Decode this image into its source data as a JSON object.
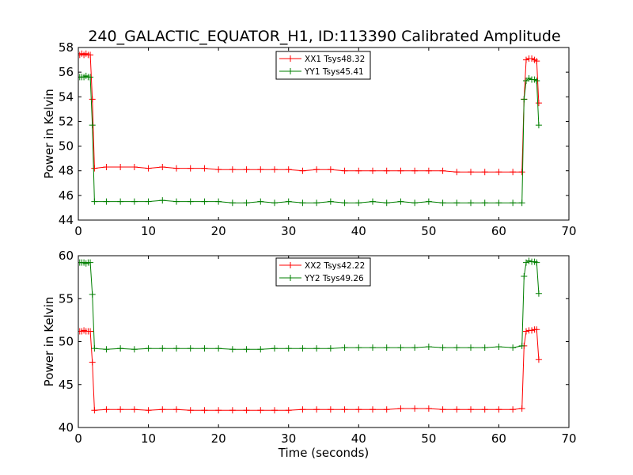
{
  "figure": {
    "title": "240_GALACTIC_EQUATOR_H1, ID:113390 Calibrated Amplitude"
  },
  "chart_data": [
    {
      "type": "line",
      "title": "240_GALACTIC_EQUATOR_H1, ID:113390 Calibrated Amplitude",
      "xlabel": "",
      "ylabel": "Power in Kelvin",
      "xlim": [
        0,
        70
      ],
      "ylim": [
        44,
        58
      ],
      "xticks": [
        0,
        10,
        20,
        30,
        40,
        50,
        60,
        70
      ],
      "yticks": [
        44,
        46,
        48,
        50,
        52,
        54,
        56,
        58
      ],
      "legend_position": "top-center",
      "grid": false,
      "marker": "+",
      "series": [
        {
          "name": "XX1 Tsys48.32",
          "color": "#ff0000",
          "points": [
            [
              0.2,
              57.4
            ],
            [
              0.5,
              57.5
            ],
            [
              0.8,
              57.4
            ],
            [
              1.1,
              57.5
            ],
            [
              1.4,
              57.4
            ],
            [
              1.7,
              57.4
            ],
            [
              2.0,
              53.8
            ],
            [
              2.3,
              48.2
            ],
            [
              4,
              48.3
            ],
            [
              6,
              48.3
            ],
            [
              8,
              48.3
            ],
            [
              10,
              48.2
            ],
            [
              12,
              48.3
            ],
            [
              14,
              48.2
            ],
            [
              16,
              48.2
            ],
            [
              18,
              48.2
            ],
            [
              20,
              48.1
            ],
            [
              22,
              48.1
            ],
            [
              24,
              48.1
            ],
            [
              26,
              48.1
            ],
            [
              28,
              48.1
            ],
            [
              30,
              48.1
            ],
            [
              32,
              48.0
            ],
            [
              34,
              48.1
            ],
            [
              36,
              48.1
            ],
            [
              38,
              48.0
            ],
            [
              40,
              48.0
            ],
            [
              42,
              48.0
            ],
            [
              44,
              48.0
            ],
            [
              46,
              48.0
            ],
            [
              48,
              48.0
            ],
            [
              50,
              48.0
            ],
            [
              52,
              48.0
            ],
            [
              54,
              47.9
            ],
            [
              56,
              47.9
            ],
            [
              58,
              47.9
            ],
            [
              60,
              47.9
            ],
            [
              62,
              47.9
            ],
            [
              63.3,
              47.9
            ],
            [
              63.6,
              53.8
            ],
            [
              63.9,
              57.0
            ],
            [
              64.3,
              57.1
            ],
            [
              64.7,
              57.1
            ],
            [
              65.1,
              57.0
            ],
            [
              65.4,
              56.9
            ],
            [
              65.7,
              53.5
            ]
          ]
        },
        {
          "name": "YY1 Tsys45.41",
          "color": "#007f00",
          "points": [
            [
              0.2,
              55.6
            ],
            [
              0.5,
              55.6
            ],
            [
              0.8,
              55.6
            ],
            [
              1.1,
              55.7
            ],
            [
              1.4,
              55.6
            ],
            [
              1.7,
              55.6
            ],
            [
              2.0,
              51.7
            ],
            [
              2.3,
              45.5
            ],
            [
              4,
              45.5
            ],
            [
              6,
              45.5
            ],
            [
              8,
              45.5
            ],
            [
              10,
              45.5
            ],
            [
              12,
              45.6
            ],
            [
              14,
              45.5
            ],
            [
              16,
              45.5
            ],
            [
              18,
              45.5
            ],
            [
              20,
              45.5
            ],
            [
              22,
              45.4
            ],
            [
              24,
              45.4
            ],
            [
              26,
              45.5
            ],
            [
              28,
              45.4
            ],
            [
              30,
              45.5
            ],
            [
              32,
              45.4
            ],
            [
              34,
              45.4
            ],
            [
              36,
              45.5
            ],
            [
              38,
              45.4
            ],
            [
              40,
              45.4
            ],
            [
              42,
              45.5
            ],
            [
              44,
              45.4
            ],
            [
              46,
              45.5
            ],
            [
              48,
              45.4
            ],
            [
              50,
              45.5
            ],
            [
              52,
              45.4
            ],
            [
              54,
              45.4
            ],
            [
              56,
              45.4
            ],
            [
              58,
              45.4
            ],
            [
              60,
              45.4
            ],
            [
              62,
              45.4
            ],
            [
              63.3,
              45.4
            ],
            [
              63.6,
              53.8
            ],
            [
              63.9,
              55.3
            ],
            [
              64.3,
              55.5
            ],
            [
              64.7,
              55.4
            ],
            [
              65.1,
              55.4
            ],
            [
              65.4,
              55.3
            ],
            [
              65.7,
              51.7
            ]
          ]
        }
      ]
    },
    {
      "type": "line",
      "title": "",
      "xlabel": "Time (seconds)",
      "ylabel": "Power in Kelvin",
      "xlim": [
        0,
        70
      ],
      "ylim": [
        40,
        60
      ],
      "xticks": [
        0,
        10,
        20,
        30,
        40,
        50,
        60,
        70
      ],
      "yticks": [
        40,
        45,
        50,
        55,
        60
      ],
      "legend_position": "top-center",
      "grid": false,
      "marker": "+",
      "series": [
        {
          "name": "XX2 Tsys42.22",
          "color": "#ff0000",
          "points": [
            [
              0.2,
              51.2
            ],
            [
              0.5,
              51.2
            ],
            [
              0.8,
              51.3
            ],
            [
              1.1,
              51.2
            ],
            [
              1.4,
              51.2
            ],
            [
              1.7,
              51.2
            ],
            [
              2.0,
              47.6
            ],
            [
              2.3,
              42.0
            ],
            [
              4,
              42.1
            ],
            [
              6,
              42.1
            ],
            [
              8,
              42.1
            ],
            [
              10,
              42.0
            ],
            [
              12,
              42.1
            ],
            [
              14,
              42.1
            ],
            [
              16,
              42.0
            ],
            [
              18,
              42.0
            ],
            [
              20,
              42.0
            ],
            [
              22,
              42.0
            ],
            [
              24,
              42.0
            ],
            [
              26,
              42.0
            ],
            [
              28,
              42.0
            ],
            [
              30,
              42.0
            ],
            [
              32,
              42.1
            ],
            [
              34,
              42.1
            ],
            [
              36,
              42.1
            ],
            [
              38,
              42.1
            ],
            [
              40,
              42.1
            ],
            [
              42,
              42.1
            ],
            [
              44,
              42.1
            ],
            [
              46,
              42.2
            ],
            [
              48,
              42.2
            ],
            [
              50,
              42.2
            ],
            [
              52,
              42.1
            ],
            [
              54,
              42.1
            ],
            [
              56,
              42.1
            ],
            [
              58,
              42.1
            ],
            [
              60,
              42.1
            ],
            [
              62,
              42.1
            ],
            [
              63.3,
              42.2
            ],
            [
              63.6,
              49.5
            ],
            [
              63.9,
              51.2
            ],
            [
              64.3,
              51.3
            ],
            [
              64.7,
              51.3
            ],
            [
              65.1,
              51.4
            ],
            [
              65.4,
              51.4
            ],
            [
              65.7,
              47.9
            ]
          ]
        },
        {
          "name": "YY2 Tsys49.26",
          "color": "#007f00",
          "points": [
            [
              0.2,
              59.2
            ],
            [
              0.5,
              59.2
            ],
            [
              0.8,
              59.2
            ],
            [
              1.1,
              59.1
            ],
            [
              1.4,
              59.2
            ],
            [
              1.7,
              59.2
            ],
            [
              2.0,
              55.5
            ],
            [
              2.3,
              49.2
            ],
            [
              4,
              49.1
            ],
            [
              6,
              49.2
            ],
            [
              8,
              49.1
            ],
            [
              10,
              49.2
            ],
            [
              12,
              49.2
            ],
            [
              14,
              49.2
            ],
            [
              16,
              49.2
            ],
            [
              18,
              49.2
            ],
            [
              20,
              49.2
            ],
            [
              22,
              49.1
            ],
            [
              24,
              49.1
            ],
            [
              26,
              49.1
            ],
            [
              28,
              49.2
            ],
            [
              30,
              49.2
            ],
            [
              32,
              49.2
            ],
            [
              34,
              49.2
            ],
            [
              36,
              49.2
            ],
            [
              38,
              49.3
            ],
            [
              40,
              49.3
            ],
            [
              42,
              49.3
            ],
            [
              44,
              49.3
            ],
            [
              46,
              49.3
            ],
            [
              48,
              49.3
            ],
            [
              50,
              49.4
            ],
            [
              52,
              49.3
            ],
            [
              54,
              49.3
            ],
            [
              56,
              49.3
            ],
            [
              58,
              49.3
            ],
            [
              60,
              49.4
            ],
            [
              62,
              49.3
            ],
            [
              63.3,
              49.5
            ],
            [
              63.6,
              57.6
            ],
            [
              63.9,
              59.2
            ],
            [
              64.3,
              59.4
            ],
            [
              64.7,
              59.3
            ],
            [
              65.1,
              59.3
            ],
            [
              65.4,
              59.2
            ],
            [
              65.7,
              55.6
            ]
          ]
        }
      ]
    }
  ]
}
